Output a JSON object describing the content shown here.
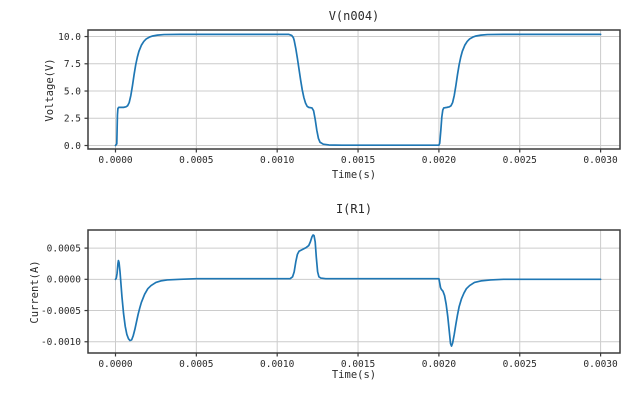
{
  "figure": {
    "background": "#ffffff",
    "line_color": "#1f77b4",
    "grid_color": "#cccccc",
    "spine_color": "#3b3b3b",
    "text_color": "#2b2b2b"
  },
  "chart_data": [
    {
      "type": "line",
      "title": "V(n004)",
      "xlabel": "Time(s)",
      "ylabel": "Voltage(V)",
      "xlim": [
        -0.00017,
        0.00312
      ],
      "ylim": [
        -0.32,
        10.6
      ],
      "xticks": [
        0.0,
        0.0005,
        0.001,
        0.0015,
        0.002,
        0.0025,
        0.003
      ],
      "xtick_labels": [
        "0.0000",
        "0.0005",
        "0.0010",
        "0.0015",
        "0.0020",
        "0.0025",
        "0.0030"
      ],
      "yticks": [
        0.0,
        2.5,
        5.0,
        7.5,
        10.0
      ],
      "ytick_labels": [
        "0.0",
        "2.5",
        "5.0",
        "7.5",
        "10.0"
      ],
      "grid": true,
      "legend": false,
      "series": [
        {
          "name": "V(n004)",
          "points": [
            [
              0.0,
              0.0
            ],
            [
              8e-06,
              0.15
            ],
            [
              1.2e-05,
              2.8
            ],
            [
              1.5e-05,
              3.4
            ],
            [
              2e-05,
              3.5
            ],
            [
              5e-05,
              3.5
            ],
            [
              6.5e-05,
              3.55
            ],
            [
              7.5e-05,
              3.65
            ],
            [
              8.5e-05,
              3.95
            ],
            [
              9.5e-05,
              4.6
            ],
            [
              0.000105,
              5.5
            ],
            [
              0.000115,
              6.5
            ],
            [
              0.000125,
              7.4
            ],
            [
              0.000135,
              8.1
            ],
            [
              0.000145,
              8.65
            ],
            [
              0.00016,
              9.2
            ],
            [
              0.000175,
              9.55
            ],
            [
              0.00019,
              9.78
            ],
            [
              0.00021,
              9.95
            ],
            [
              0.00023,
              10.05
            ],
            [
              0.00026,
              10.13
            ],
            [
              0.0003,
              10.18
            ],
            [
              0.0004,
              10.2
            ],
            [
              0.00107,
              10.2
            ],
            [
              0.00109,
              10.1
            ],
            [
              0.0011,
              9.9
            ],
            [
              0.001105,
              9.65
            ],
            [
              0.001115,
              8.9
            ],
            [
              0.001125,
              8.0
            ],
            [
              0.001135,
              7.0
            ],
            [
              0.001145,
              6.0
            ],
            [
              0.001155,
              5.1
            ],
            [
              0.001165,
              4.4
            ],
            [
              0.001175,
              3.9
            ],
            [
              0.001185,
              3.6
            ],
            [
              0.001195,
              3.5
            ],
            [
              0.001215,
              3.45
            ],
            [
              0.001225,
              3.2
            ],
            [
              0.001235,
              2.4
            ],
            [
              0.001245,
              1.4
            ],
            [
              0.001255,
              0.65
            ],
            [
              0.001265,
              0.3
            ],
            [
              0.001285,
              0.12
            ],
            [
              0.00132,
              0.05
            ],
            [
              0.0014,
              0.03
            ],
            [
              0.002,
              0.03
            ],
            [
              0.002005,
              0.2
            ],
            [
              0.002012,
              1.4
            ],
            [
              0.002018,
              2.6
            ],
            [
              0.002024,
              3.25
            ],
            [
              0.00203,
              3.45
            ],
            [
              0.00205,
              3.5
            ],
            [
              0.002065,
              3.55
            ],
            [
              0.002075,
              3.65
            ],
            [
              0.002085,
              3.95
            ],
            [
              0.002095,
              4.6
            ],
            [
              0.002105,
              5.5
            ],
            [
              0.002115,
              6.5
            ],
            [
              0.002125,
              7.4
            ],
            [
              0.002135,
              8.1
            ],
            [
              0.002145,
              8.65
            ],
            [
              0.00216,
              9.2
            ],
            [
              0.002175,
              9.55
            ],
            [
              0.00219,
              9.78
            ],
            [
              0.00221,
              9.95
            ],
            [
              0.00223,
              10.05
            ],
            [
              0.00226,
              10.13
            ],
            [
              0.0023,
              10.18
            ],
            [
              0.0024,
              10.2
            ],
            [
              0.003,
              10.2
            ]
          ]
        }
      ]
    },
    {
      "type": "line",
      "title": "I(R1)",
      "xlabel": "Time(s)",
      "ylabel": "Current(A)",
      "xlim": [
        -0.00017,
        0.00312
      ],
      "ylim": [
        -0.00118,
        0.00079
      ],
      "xticks": [
        0.0,
        0.0005,
        0.001,
        0.0015,
        0.002,
        0.0025,
        0.003
      ],
      "xtick_labels": [
        "0.0000",
        "0.0005",
        "0.0010",
        "0.0015",
        "0.0020",
        "0.0025",
        "0.0030"
      ],
      "yticks": [
        0.0005,
        0.0,
        -0.0005,
        -0.001
      ],
      "ytick_labels": [
        "0.0005",
        "0.0000",
        "-0.0005",
        "-0.0010"
      ],
      "grid": true,
      "legend": false,
      "series": [
        {
          "name": "I(R1)",
          "points": [
            [
              0.0,
              0.0
            ],
            [
              5e-06,
              2e-05
            ],
            [
              1e-05,
              0.0001
            ],
            [
              1.5e-05,
              0.00025
            ],
            [
              1.8e-05,
              0.0003
            ],
            [
              2.2e-05,
              0.00027
            ],
            [
              2.8e-05,
              0.00012
            ],
            [
              3.4e-05,
              -8e-05
            ],
            [
              4e-05,
              -0.00028
            ],
            [
              5e-05,
              -0.00055
            ],
            [
              6e-05,
              -0.00075
            ],
            [
              7e-05,
              -0.00088
            ],
            [
              8e-05,
              -0.00095
            ],
            [
              9e-05,
              -0.00098
            ],
            [
              0.0001,
              -0.00097
            ],
            [
              0.00011,
              -0.0009
            ],
            [
              0.00012,
              -0.0008
            ],
            [
              0.00013,
              -0.00068
            ],
            [
              0.00014,
              -0.00056
            ],
            [
              0.00015,
              -0.00046
            ],
            [
              0.00016,
              -0.00037
            ],
            [
              0.00018,
              -0.00024
            ],
            [
              0.0002,
              -0.00015
            ],
            [
              0.00022,
              -0.0001
            ],
            [
              0.00025,
              -5e-05
            ],
            [
              0.00028,
              -2.5e-05
            ],
            [
              0.00032,
              -1e-05
            ],
            [
              0.0004,
              0.0
            ],
            [
              0.0005,
              1e-05
            ],
            [
              0.00108,
              1e-05
            ],
            [
              0.001095,
              4e-05
            ],
            [
              0.001105,
              0.00012
            ],
            [
              0.001115,
              0.00028
            ],
            [
              0.001125,
              0.0004
            ],
            [
              0.001135,
              0.00045
            ],
            [
              0.00115,
              0.00047
            ],
            [
              0.001165,
              0.00049
            ],
            [
              0.00118,
              0.00051
            ],
            [
              0.001195,
              0.00054
            ],
            [
              0.001205,
              0.0006
            ],
            [
              0.001215,
              0.00068
            ],
            [
              0.001222,
              0.00071
            ],
            [
              0.001228,
              0.0007
            ],
            [
              0.001235,
              0.0006
            ],
            [
              0.001242,
              0.00035
            ],
            [
              0.00125,
              0.00012
            ],
            [
              0.001258,
              4e-05
            ],
            [
              0.00127,
              2e-05
            ],
            [
              0.0013,
              1e-05
            ],
            [
              0.002,
              1e-05
            ],
            [
              0.002005,
              -6e-05
            ],
            [
              0.00201,
              -0.00013
            ],
            [
              0.002015,
              -0.00016
            ],
            [
              0.002025,
              -0.00019
            ],
            [
              0.002035,
              -0.00026
            ],
            [
              0.002045,
              -0.0004
            ],
            [
              0.002055,
              -0.0006
            ],
            [
              0.002065,
              -0.00085
            ],
            [
              0.002072,
              -0.00103
            ],
            [
              0.002078,
              -0.00107
            ],
            [
              0.002085,
              -0.00102
            ],
            [
              0.002095,
              -0.00088
            ],
            [
              0.002105,
              -0.00072
            ],
            [
              0.002115,
              -0.00057
            ],
            [
              0.002125,
              -0.00044
            ],
            [
              0.00214,
              -0.00031
            ],
            [
              0.002155,
              -0.00022
            ],
            [
              0.00217,
              -0.00015
            ],
            [
              0.00219,
              -0.0001
            ],
            [
              0.00222,
              -5e-05
            ],
            [
              0.00226,
              -2.5e-05
            ],
            [
              0.00232,
              -1e-05
            ],
            [
              0.0024,
              0.0
            ],
            [
              0.003,
              0.0
            ]
          ]
        }
      ]
    }
  ]
}
